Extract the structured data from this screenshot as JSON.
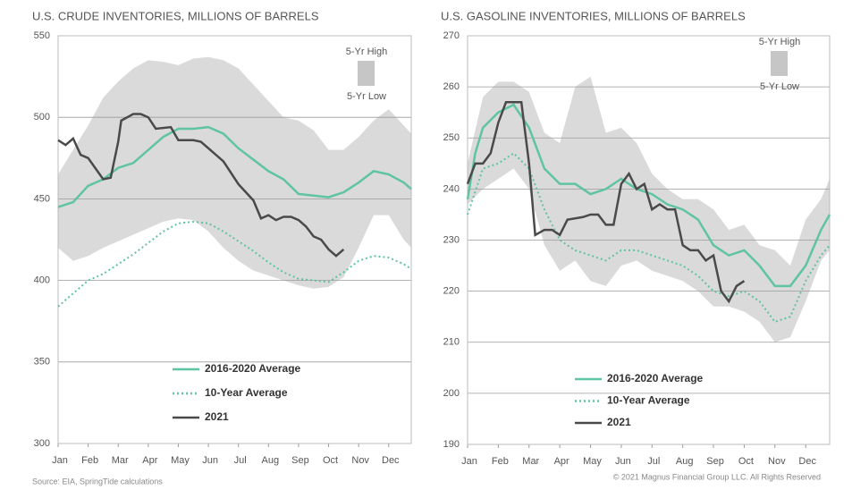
{
  "chart_data": [
    {
      "type": "line",
      "title": "U.S. CRUDE INVENTORIES, MILLIONS OF BARRELS",
      "xlim": [
        0,
        11.75
      ],
      "xticks": [
        {
          "value": 0,
          "label": "Jan"
        },
        {
          "value": 1,
          "label": "Feb"
        },
        {
          "value": 2,
          "label": "Mar"
        },
        {
          "value": 3,
          "label": "Apr"
        },
        {
          "value": 4,
          "label": "May"
        },
        {
          "value": 5,
          "label": "Jun"
        },
        {
          "value": 6,
          "label": "Jul"
        },
        {
          "value": 7,
          "label": "Aug"
        },
        {
          "value": 8,
          "label": "Sep"
        },
        {
          "value": 9,
          "label": "Oct"
        },
        {
          "value": 10,
          "label": "Nov"
        },
        {
          "value": 11,
          "label": "Dec"
        }
      ],
      "ylim": [
        300,
        550
      ],
      "yticks": [
        300,
        350,
        400,
        450,
        500,
        550
      ],
      "grid": true,
      "band": {
        "high_name": "5-Yr High",
        "low_name": "5-Yr Low",
        "color": "#dadada",
        "x": [
          0,
          0.5,
          1,
          1.5,
          2,
          2.5,
          3,
          3.5,
          4,
          4.5,
          5,
          5.5,
          6,
          6.5,
          7,
          7.5,
          8,
          8.5,
          9,
          9.5,
          10,
          10.5,
          11,
          11.5,
          11.75
        ],
        "high": [
          465,
          480,
          495,
          512,
          522,
          530,
          535,
          534,
          532,
          536,
          537,
          535,
          530,
          520,
          510,
          500,
          498,
          492,
          480,
          480,
          488,
          498,
          505,
          495,
          490
        ],
        "low": [
          420,
          412,
          415,
          420,
          424,
          428,
          432,
          436,
          438,
          437,
          430,
          420,
          412,
          406,
          403,
          400,
          397,
          395,
          396,
          402,
          420,
          440,
          440,
          425,
          420
        ]
      },
      "series": [
        {
          "name": "2016-2020 Average",
          "color": "#5fc4a0",
          "style": "solid",
          "x": [
            0,
            0.5,
            1,
            1.5,
            2,
            2.5,
            3,
            3.5,
            4,
            4.5,
            5,
            5.5,
            6,
            6.5,
            7,
            7.5,
            8,
            8.5,
            9,
            9.5,
            10,
            10.5,
            11,
            11.5,
            11.75
          ],
          "values": [
            445,
            448,
            458,
            462,
            469,
            472,
            480,
            488,
            493,
            493,
            494,
            490,
            481,
            474,
            467,
            462,
            453,
            452,
            451,
            454,
            460,
            467,
            465,
            460,
            456
          ]
        },
        {
          "name": "10-Year Average",
          "color": "#5fc4a0",
          "style": "dotted",
          "x": [
            0,
            0.5,
            1,
            1.5,
            2,
            2.5,
            3,
            3.5,
            4,
            4.5,
            5,
            5.5,
            6,
            6.5,
            7,
            7.5,
            8,
            8.5,
            9,
            9.5,
            10,
            10.5,
            11,
            11.5,
            11.75
          ],
          "values": [
            384,
            392,
            400,
            404,
            410,
            416,
            423,
            430,
            435,
            436,
            435,
            430,
            424,
            418,
            411,
            405,
            401,
            400,
            399,
            405,
            412,
            415,
            414,
            410,
            407
          ]
        },
        {
          "name": "2021",
          "color": "#4a4a4a",
          "style": "solid",
          "x": [
            0,
            0.25,
            0.5,
            0.75,
            1,
            1.5,
            1.75,
            2,
            2.1,
            2.5,
            2.75,
            3,
            3.25,
            3.75,
            4,
            4.25,
            4.5,
            4.75,
            5,
            5.5,
            6,
            6.5,
            6.75,
            7,
            7.25,
            7.5,
            7.75,
            8,
            8.25,
            8.5,
            8.75,
            9,
            9.25,
            9.5
          ],
          "values": [
            486,
            483,
            487,
            477,
            475,
            462,
            463,
            485,
            498,
            502,
            502,
            500,
            493,
            494,
            486,
            486,
            486,
            485,
            481,
            473,
            459,
            449,
            438,
            440,
            437,
            439,
            439,
            437,
            433,
            427,
            425,
            419,
            415,
            419
          ]
        }
      ]
    },
    {
      "type": "line",
      "title": "U.S. GASOLINE INVENTORIES, MILLIONS OF BARRELS",
      "xlim": [
        0,
        11.78
      ],
      "xticks": [
        {
          "value": 0,
          "label": "Jan"
        },
        {
          "value": 1,
          "label": "Feb"
        },
        {
          "value": 2,
          "label": "Mar"
        },
        {
          "value": 3,
          "label": "Apr"
        },
        {
          "value": 4,
          "label": "May"
        },
        {
          "value": 5,
          "label": "Jun"
        },
        {
          "value": 6,
          "label": "Jul"
        },
        {
          "value": 7,
          "label": "Aug"
        },
        {
          "value": 8,
          "label": "Sep"
        },
        {
          "value": 9,
          "label": "Oct"
        },
        {
          "value": 10,
          "label": "Nov"
        },
        {
          "value": 11,
          "label": "Dec"
        }
      ],
      "ylim": [
        190,
        270
      ],
      "yticks": [
        190,
        200,
        210,
        220,
        230,
        240,
        250,
        260,
        270
      ],
      "grid": true,
      "band": {
        "high_name": "5-Yr High",
        "low_name": "5-Yr Low",
        "color": "#dadada",
        "x": [
          0,
          0.5,
          1,
          1.5,
          2,
          2.5,
          3,
          3.5,
          4,
          4.5,
          5,
          5.5,
          6,
          6.5,
          7,
          7.5,
          8,
          8.5,
          9,
          9.5,
          10,
          10.5,
          11,
          11.5,
          11.78
        ],
        "high": [
          245,
          258,
          261,
          261,
          259,
          251,
          249,
          260,
          262,
          251,
          252,
          249,
          243,
          240,
          238,
          238,
          236,
          232,
          233,
          229,
          228,
          225,
          234,
          238,
          242
        ],
        "low": [
          237,
          240,
          242,
          244,
          240,
          229,
          224,
          226,
          222,
          221,
          225,
          226,
          224,
          223,
          222,
          220,
          217,
          217,
          216,
          214,
          210,
          211,
          218,
          226,
          228
        ]
      },
      "series": [
        {
          "name": "2016-2020 Average",
          "color": "#5fc4a0",
          "style": "solid",
          "x": [
            0,
            0.25,
            0.5,
            1,
            1.5,
            2,
            2.5,
            3,
            3.5,
            4,
            4.5,
            5,
            5.5,
            6,
            6.5,
            7,
            7.5,
            8,
            8.5,
            9,
            9.5,
            10,
            10.5,
            11,
            11.5,
            11.78
          ],
          "values": [
            238,
            247,
            252,
            255,
            256.5,
            252,
            244,
            241,
            241,
            239,
            240,
            242,
            240,
            239,
            237,
            236,
            234,
            229,
            227,
            228,
            225,
            221,
            221,
            225,
            232,
            235
          ]
        },
        {
          "name": "10-Year Average",
          "color": "#5fc4a0",
          "style": "dotted",
          "x": [
            0,
            0.5,
            1,
            1.5,
            2,
            2.5,
            3,
            3.5,
            4,
            4.5,
            5,
            5.5,
            6,
            6.5,
            7,
            7.5,
            8,
            8.5,
            9,
            9.5,
            10,
            10.5,
            11,
            11.5,
            11.78
          ],
          "values": [
            235,
            244,
            245,
            247,
            244,
            236,
            230,
            228,
            227,
            226,
            228,
            228,
            227,
            226,
            225,
            223,
            220,
            219,
            220,
            218,
            214,
            215,
            222,
            227,
            229
          ]
        },
        {
          "name": "2021",
          "color": "#4a4a4a",
          "style": "solid",
          "x": [
            0,
            0.25,
            0.5,
            0.75,
            1,
            1.25,
            1.5,
            1.75,
            2,
            2.2,
            2.5,
            2.75,
            3,
            3.25,
            3.75,
            4,
            4.25,
            4.5,
            4.75,
            5,
            5.25,
            5.5,
            5.75,
            6,
            6.25,
            6.5,
            6.75,
            7,
            7.25,
            7.5,
            7.75,
            8,
            8.25,
            8.5,
            8.75,
            9
          ],
          "values": [
            241,
            245,
            245,
            247,
            253,
            257,
            257,
            257,
            245,
            231,
            232,
            232,
            231,
            234,
            234.5,
            235,
            235,
            233,
            233,
            241,
            243,
            240,
            241,
            236,
            237,
            236,
            236,
            229,
            228,
            228,
            226,
            227,
            220,
            218,
            221,
            222
          ]
        }
      ]
    }
  ],
  "footer": {
    "source": "Source: EIA, SpringTide calculations",
    "copyright": "© 2021 Magnus Financial Group LLC. All Rights Reserved"
  }
}
